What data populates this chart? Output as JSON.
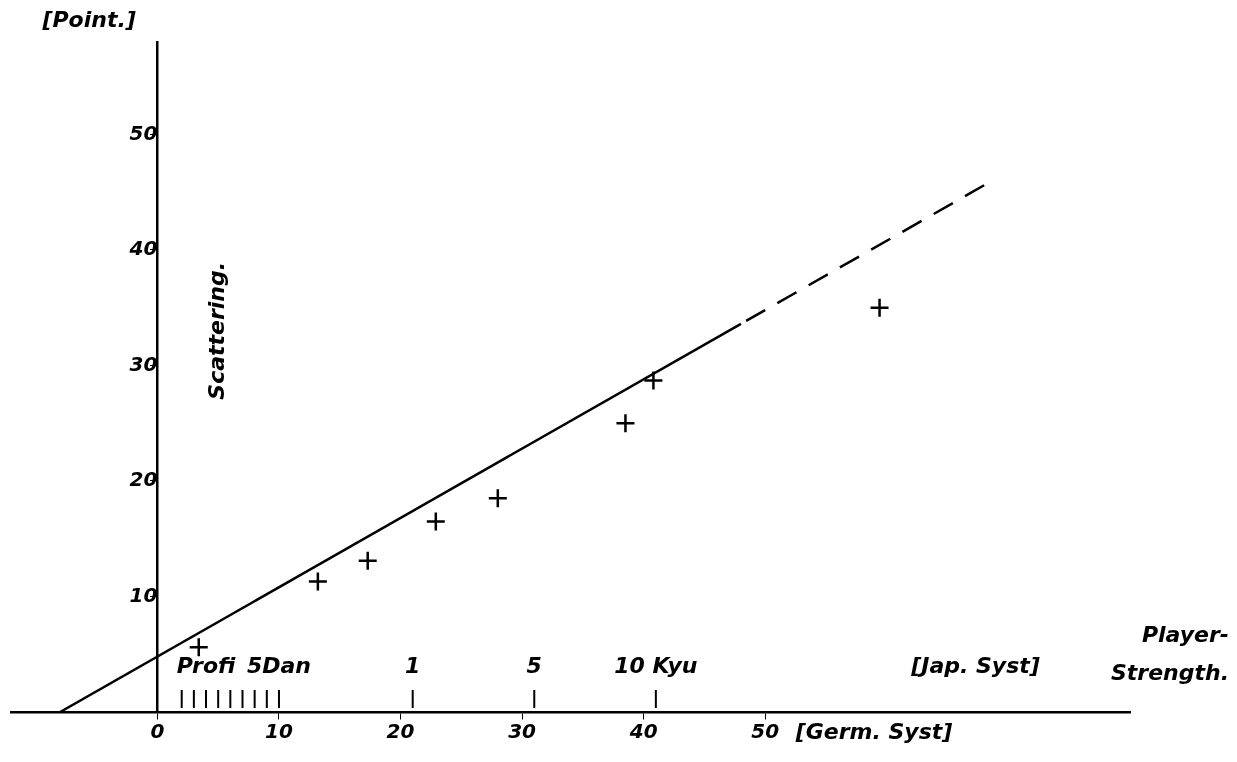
{
  "chart_data": {
    "type": "scatter",
    "ylabel": "[Point.]",
    "xlabel": "Player-Strength.",
    "annotations": [
      "Scattering.",
      "[Germ. Syst]",
      "Profi",
      "5Dan",
      "1",
      "5",
      "10 Kyu",
      "[Jap. Syst]"
    ],
    "xlim": [
      -12,
      80
    ],
    "xticks": [
      0,
      10,
      20,
      30,
      40,
      50
    ],
    "ylim": [
      0,
      58
    ],
    "yticks": [
      10,
      20,
      30,
      40,
      50
    ],
    "grid": false,
    "legend": false,
    "marker": "cross",
    "series": [
      {
        "color": "#000000",
        "x": [
          3.4,
          13.2,
          17.3,
          22.9,
          28,
          38.5,
          40.8,
          59.4
        ],
        "values": [
          5.6,
          11.3,
          13.1,
          16.5,
          18.5,
          25,
          28.7,
          35
        ]
      },
      {
        "type": "line",
        "color": "#000000",
        "line_style": "solid",
        "marker": "none",
        "x": [
          -8,
          48
        ],
        "values": [
          0,
          33.6
        ]
      },
      {
        "type": "line",
        "color": "#000000",
        "line_style": "dashed",
        "marker": "none",
        "x": [
          68,
          48
        ],
        "values": [
          45.6,
          33.6
        ]
      }
    ]
  }
}
